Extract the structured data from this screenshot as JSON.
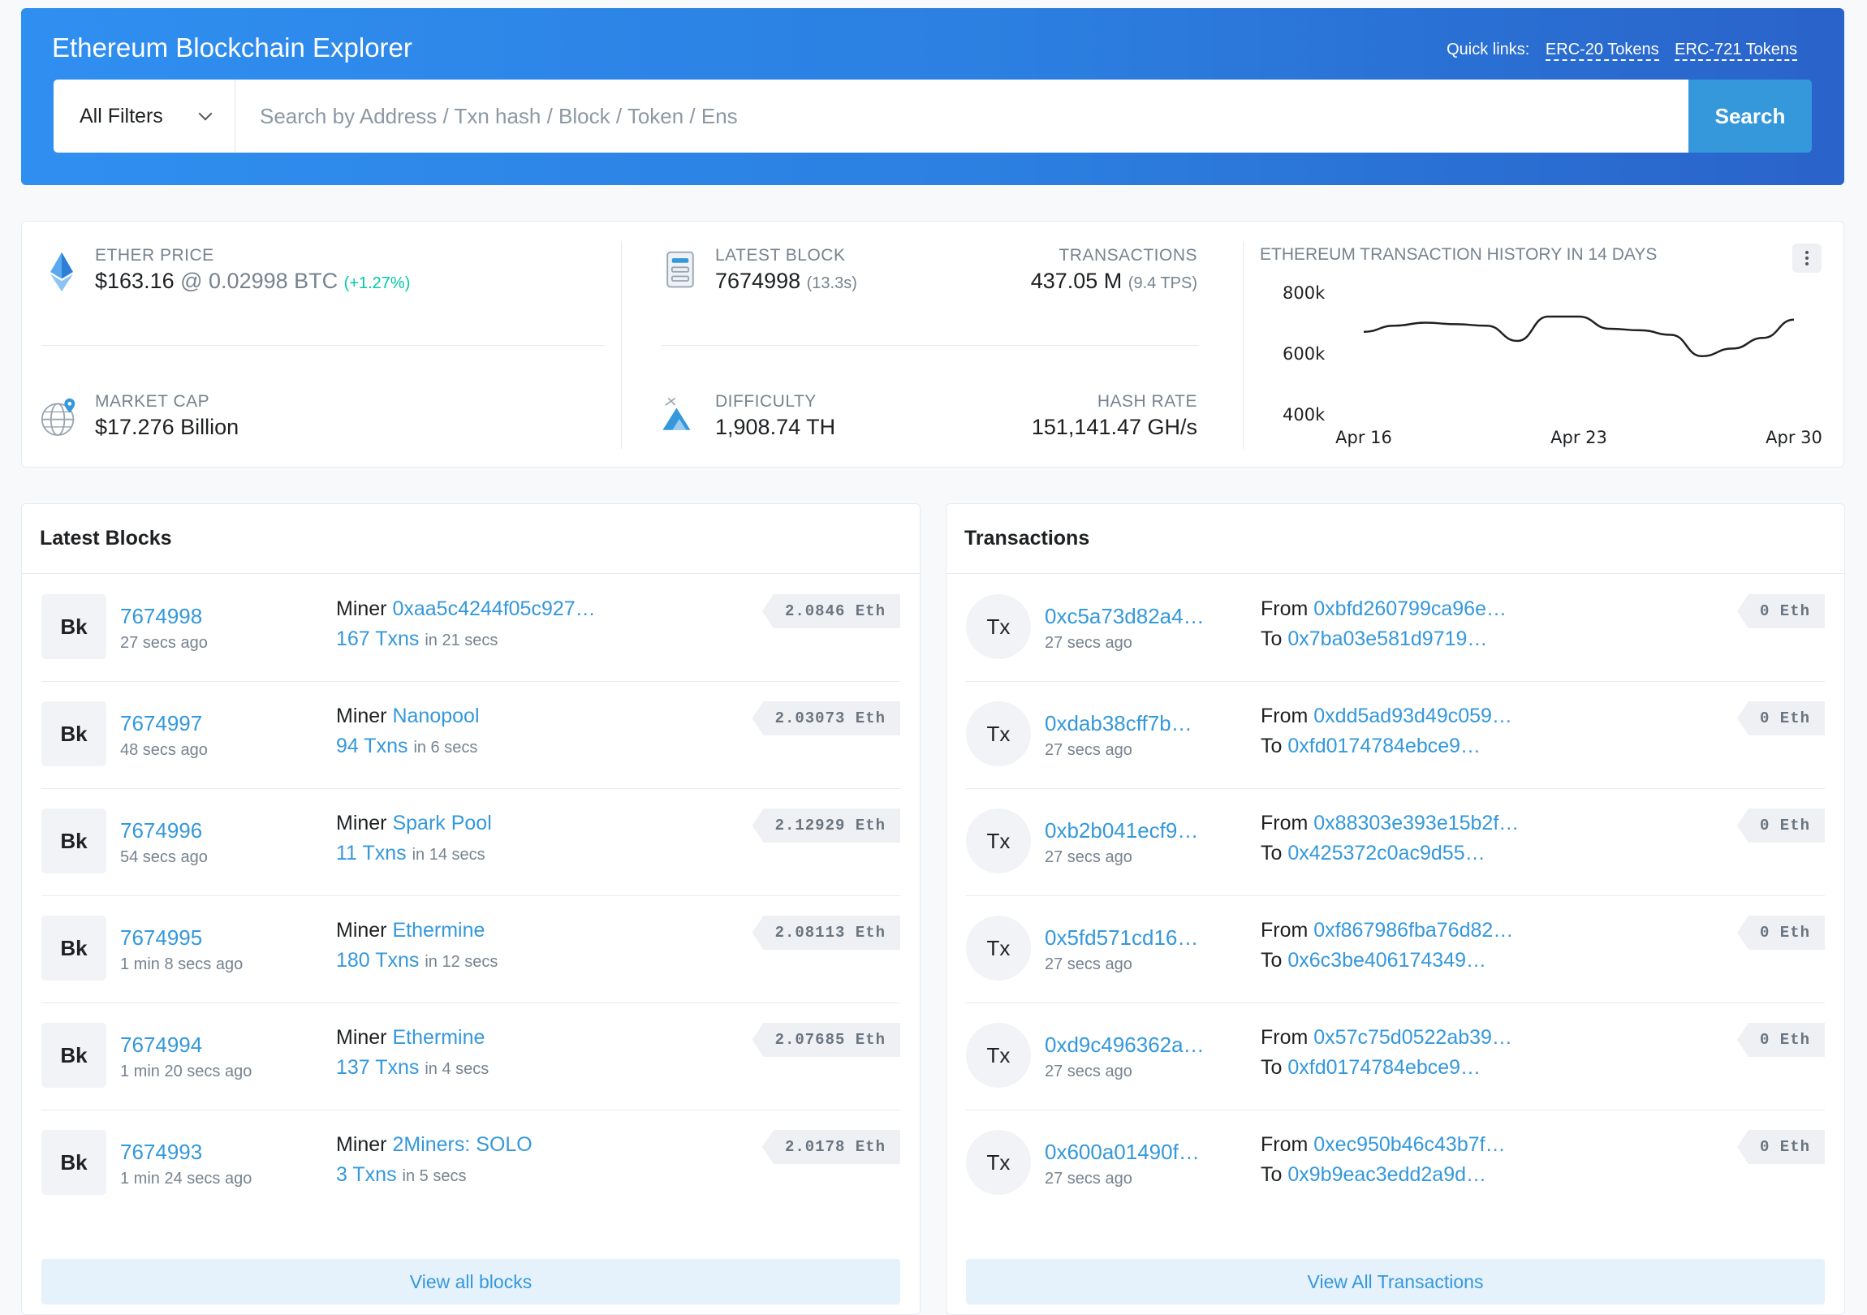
{
  "header": {
    "title": "Ethereum Blockchain Explorer",
    "quick_label": "Quick links:",
    "quick_links": [
      "ERC-20 Tokens",
      "ERC-721 Tokens"
    ],
    "filter_label": "All Filters",
    "search_placeholder": "Search by Address / Txn hash / Block / Token / Ens",
    "search_button": "Search"
  },
  "stats": {
    "ether_price": {
      "label": "ETHER PRICE",
      "value": "$163.16",
      "at": "@ 0.02998 BTC",
      "change": "(+1.27%)"
    },
    "market_cap": {
      "label": "MARKET CAP",
      "value": "$17.276 Billion"
    },
    "latest_block": {
      "label": "LATEST BLOCK",
      "value": "7674998",
      "sub": "(13.3s)"
    },
    "transactions": {
      "label": "TRANSACTIONS",
      "value": "437.05 M",
      "sub": "(9.4 TPS)"
    },
    "difficulty": {
      "label": "DIFFICULTY",
      "value": "1,908.74 TH"
    },
    "hash_rate": {
      "label": "HASH RATE",
      "value": "151,141.47 GH/s"
    }
  },
  "chart_data": {
    "type": "line",
    "title": "ETHEREUM TRANSACTION HISTORY IN 14 DAYS",
    "x": [
      "Apr 16",
      "Apr 17",
      "Apr 18",
      "Apr 19",
      "Apr 20",
      "Apr 21",
      "Apr 22",
      "Apr 23",
      "Apr 24",
      "Apr 25",
      "Apr 26",
      "Apr 27",
      "Apr 28",
      "Apr 29",
      "Apr 30"
    ],
    "values": [
      670000,
      690000,
      700000,
      695000,
      690000,
      640000,
      720000,
      720000,
      680000,
      675000,
      660000,
      590000,
      615000,
      650000,
      710000
    ],
    "y_ticks": [
      800000,
      600000,
      400000
    ],
    "y_tick_labels": [
      "800k",
      "600k",
      "400k"
    ],
    "x_tick_labels": [
      "Apr 16",
      "Apr 23",
      "Apr 30"
    ],
    "ylim": [
      400000,
      800000
    ],
    "color": "#1e2022"
  },
  "blocks": {
    "title": "Latest Blocks",
    "badge": "Bk",
    "miner_label": "Miner",
    "view_all": "View all blocks",
    "items": [
      {
        "number": "7674998",
        "age": "27 secs ago",
        "miner": "0xaa5c4244f05c927…",
        "txns": "167 Txns",
        "time": "in 21 secs",
        "reward": "2.0846 Eth"
      },
      {
        "number": "7674997",
        "age": "48 secs ago",
        "miner": "Nanopool",
        "txns": "94 Txns",
        "time": "in 6 secs",
        "reward": "2.03073 Eth"
      },
      {
        "number": "7674996",
        "age": "54 secs ago",
        "miner": "Spark Pool",
        "txns": "11 Txns",
        "time": "in 14 secs",
        "reward": "2.12929 Eth"
      },
      {
        "number": "7674995",
        "age": "1 min 8 secs ago",
        "miner": "Ethermine",
        "txns": "180 Txns",
        "time": "in 12 secs",
        "reward": "2.08113 Eth"
      },
      {
        "number": "7674994",
        "age": "1 min 20 secs ago",
        "miner": "Ethermine",
        "txns": "137 Txns",
        "time": "in 4 secs",
        "reward": "2.07685 Eth"
      },
      {
        "number": "7674993",
        "age": "1 min 24 secs ago",
        "miner": "2Miners: SOLO",
        "txns": "3 Txns",
        "time": "in 5 secs",
        "reward": "2.0178 Eth"
      }
    ]
  },
  "transactions": {
    "title": "Transactions",
    "badge": "Tx",
    "from_label": "From",
    "to_label": "To",
    "view_all": "View All Transactions",
    "items": [
      {
        "hash": "0xc5a73d82a4…",
        "age": "27 secs ago",
        "from": "0xbfd260799ca96e…",
        "to": "0x7ba03e581d9719…",
        "value": "0 Eth"
      },
      {
        "hash": "0xdab38cff7b…",
        "age": "27 secs ago",
        "from": "0xdd5ad93d49c059…",
        "to": "0xfd0174784ebce9…",
        "value": "0 Eth"
      },
      {
        "hash": "0xb2b041ecf9…",
        "age": "27 secs ago",
        "from": "0x88303e393e15b2f…",
        "to": "0x425372c0ac9d55…",
        "value": "0 Eth"
      },
      {
        "hash": "0x5fd571cd16…",
        "age": "27 secs ago",
        "from": "0xf867986fba76d82…",
        "to": "0x6c3be406174349…",
        "value": "0 Eth"
      },
      {
        "hash": "0xd9c496362a…",
        "age": "27 secs ago",
        "from": "0x57c75d0522ab39…",
        "to": "0xfd0174784ebce9…",
        "value": "0 Eth"
      },
      {
        "hash": "0x600a01490f…",
        "age": "27 secs ago",
        "from": "0xec950b46c43b7f…",
        "to": "0x9b9eac3edd2a9d…",
        "value": "0 Eth"
      }
    ]
  }
}
